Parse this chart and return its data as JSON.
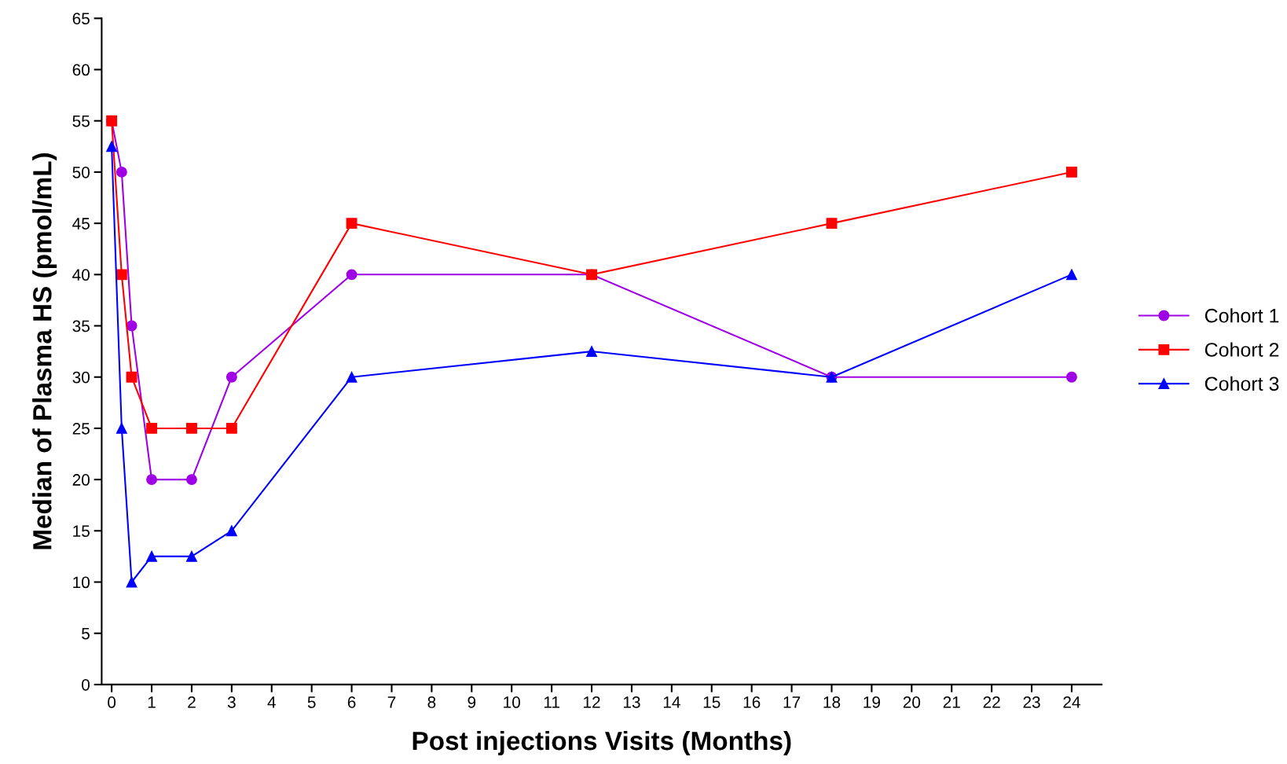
{
  "chart_data": {
    "type": "line",
    "xlabel": "Post injections Visits (Months)",
    "ylabel": "Median of Plasma HS (pmol/mL)",
    "x": [
      0,
      0.25,
      0.5,
      1,
      2,
      3,
      6,
      12,
      18,
      24
    ],
    "series": [
      {
        "name": "Cohort 1",
        "color": "#9f00e6",
        "marker": "circle",
        "values": [
          55,
          50,
          35,
          20,
          20,
          30,
          40,
          40,
          30,
          30
        ]
      },
      {
        "name": "Cohort 2",
        "color": "#ff0000",
        "marker": "square",
        "values": [
          55,
          40,
          30,
          25,
          25,
          25,
          45,
          40,
          45,
          50
        ]
      },
      {
        "name": "Cohort 3",
        "color": "#0000ff",
        "marker": "triangle",
        "values": [
          52.5,
          25,
          10,
          12.5,
          12.5,
          15,
          30,
          32.5,
          30,
          40
        ]
      }
    ],
    "xlim": [
      -0.25,
      24.75
    ],
    "xticks": [
      0,
      1,
      2,
      3,
      4,
      5,
      6,
      7,
      8,
      9,
      10,
      11,
      12,
      13,
      14,
      15,
      16,
      17,
      18,
      19,
      20,
      21,
      22,
      23,
      24
    ],
    "ylim": [
      0,
      65
    ],
    "yticks": [
      0,
      5,
      10,
      15,
      20,
      25,
      30,
      35,
      40,
      45,
      50,
      55,
      60,
      65
    ],
    "grid": false,
    "legend": "right",
    "line_style": "solid"
  }
}
